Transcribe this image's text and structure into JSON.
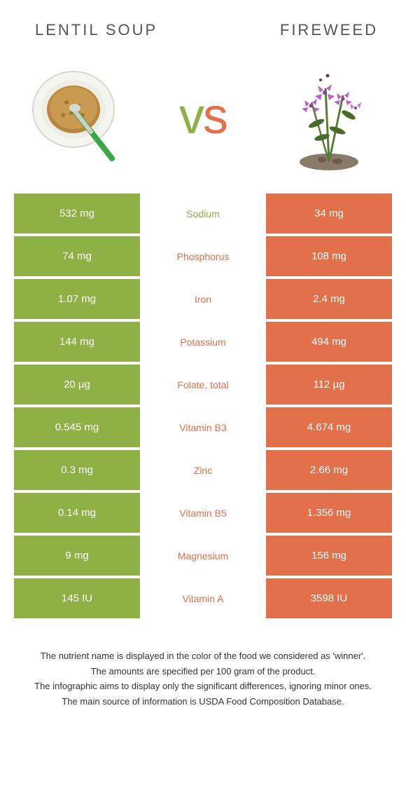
{
  "colors": {
    "left": "#8fb044",
    "right": "#e1704b",
    "header_text": "#555555",
    "footer_text": "#333333",
    "white": "#ffffff"
  },
  "header": {
    "left_title": "Lentil soup",
    "right_title": "Fireweed"
  },
  "vs": {
    "v": "v",
    "s": "s"
  },
  "rows": [
    {
      "left": "532 mg",
      "label": "Sodium",
      "right": "34 mg",
      "winner": "left"
    },
    {
      "left": "74 mg",
      "label": "Phosphorus",
      "right": "108 mg",
      "winner": "right"
    },
    {
      "left": "1.07 mg",
      "label": "Iron",
      "right": "2.4 mg",
      "winner": "right"
    },
    {
      "left": "144 mg",
      "label": "Potassium",
      "right": "494 mg",
      "winner": "right"
    },
    {
      "left": "20 µg",
      "label": "Folate, total",
      "right": "112 µg",
      "winner": "right"
    },
    {
      "left": "0.545 mg",
      "label": "Vitamin B3",
      "right": "4.674 mg",
      "winner": "right"
    },
    {
      "left": "0.3 mg",
      "label": "Zinc",
      "right": "2.66 mg",
      "winner": "right"
    },
    {
      "left": "0.14 mg",
      "label": "Vitamin B5",
      "right": "1.356 mg",
      "winner": "right"
    },
    {
      "left": "9 mg",
      "label": "Magnesium",
      "right": "156 mg",
      "winner": "right"
    },
    {
      "left": "145 IU",
      "label": "Vitamin A",
      "right": "3598 IU",
      "winner": "right"
    }
  ],
  "footer": {
    "line1": "The nutrient name is displayed in the color of the food we considered as 'winner'.",
    "line2": "The amounts are specified per 100 gram of the product.",
    "line3": "The infographic aims to display only the significant differences, ignoring minor ones.",
    "line4": "The main source of information is USDA Food Composition Database."
  }
}
